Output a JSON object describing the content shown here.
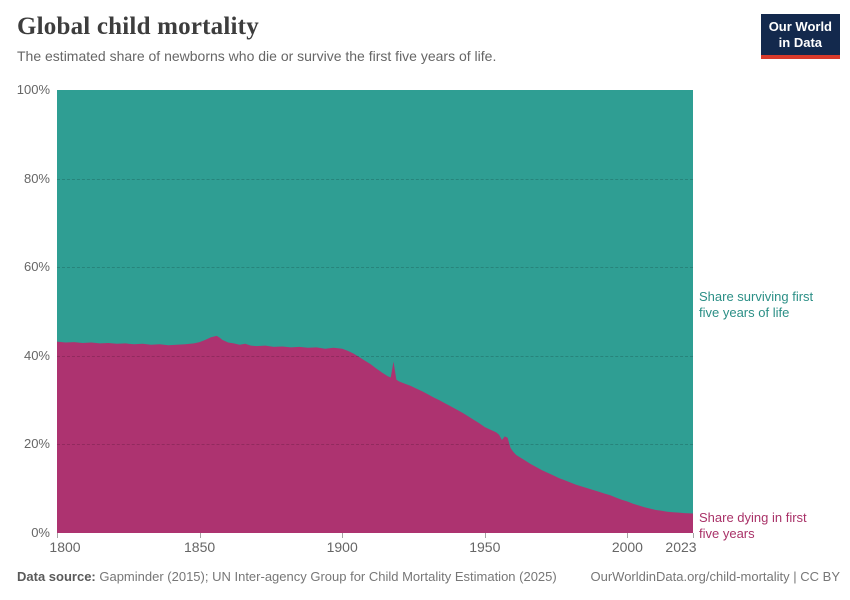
{
  "header": {
    "title": "Global child mortality",
    "subtitle": "The estimated share of newborns who die or survive the first five years of life.",
    "logo": {
      "line1": "Our World",
      "line2": "in Data",
      "bg_color": "#13294d",
      "accent_color": "#d93a2b"
    }
  },
  "chart_data": {
    "type": "area",
    "stacked": true,
    "stack_total": 100,
    "title": "Global child mortality",
    "xlabel": "",
    "ylabel": "",
    "xlim": [
      1800,
      2023
    ],
    "ylim": [
      0,
      100
    ],
    "grid": "dashed horizontal",
    "yticks": [
      0,
      20,
      40,
      60,
      80,
      100
    ],
    "ytick_suffix": "%",
    "xticks": [
      1800,
      1850,
      1900,
      1950,
      2000,
      2023
    ],
    "x": [
      1800,
      1803,
      1806,
      1809,
      1812,
      1815,
      1818,
      1821,
      1824,
      1827,
      1830,
      1833,
      1836,
      1839,
      1842,
      1845,
      1848,
      1850,
      1852,
      1854,
      1856,
      1857,
      1858,
      1860,
      1862,
      1864,
      1866,
      1868,
      1870,
      1873,
      1876,
      1879,
      1882,
      1885,
      1888,
      1891,
      1894,
      1897,
      1900,
      1902,
      1904,
      1906,
      1908,
      1910,
      1912,
      1914,
      1916,
      1917,
      1918,
      1919,
      1920,
      1922,
      1924,
      1926,
      1928,
      1930,
      1932,
      1934,
      1936,
      1938,
      1940,
      1942,
      1944,
      1946,
      1948,
      1950,
      1952,
      1954,
      1955,
      1956,
      1957,
      1958,
      1959,
      1960,
      1961,
      1962,
      1964,
      1966,
      1968,
      1970,
      1972,
      1974,
      1976,
      1978,
      1980,
      1982,
      1984,
      1986,
      1988,
      1990,
      1992,
      1994,
      1996,
      1998,
      2000,
      2002,
      2004,
      2006,
      2008,
      2010,
      2012,
      2014,
      2016,
      2018,
      2020,
      2023
    ],
    "series": [
      {
        "name": "Share dying in first five years",
        "color": "#ad3370",
        "values": [
          43.2,
          43.0,
          43.1,
          42.9,
          43.0,
          42.8,
          42.9,
          42.7,
          42.8,
          42.6,
          42.7,
          42.5,
          42.6,
          42.4,
          42.5,
          42.6,
          42.8,
          43.1,
          43.6,
          44.2,
          44.5,
          44.1,
          43.6,
          43.0,
          42.8,
          42.5,
          42.7,
          42.3,
          42.2,
          42.3,
          42.0,
          42.1,
          41.9,
          42.0,
          41.8,
          41.9,
          41.6,
          41.8,
          41.6,
          41.1,
          40.5,
          39.7,
          38.9,
          38.1,
          37.1,
          36.2,
          35.4,
          35.1,
          38.7,
          34.6,
          34.2,
          33.7,
          33.2,
          32.6,
          32.0,
          31.3,
          30.6,
          30.0,
          29.3,
          28.6,
          27.9,
          27.2,
          26.4,
          25.6,
          24.8,
          23.9,
          23.3,
          22.7,
          22.2,
          21.0,
          21.8,
          21.5,
          19.2,
          18.3,
          17.6,
          17.2,
          16.4,
          15.6,
          14.9,
          14.2,
          13.6,
          13.0,
          12.4,
          11.9,
          11.4,
          10.9,
          10.5,
          10.1,
          9.7,
          9.3,
          8.9,
          8.5,
          8.0,
          7.5,
          7.1,
          6.6,
          6.2,
          5.8,
          5.5,
          5.2,
          5.0,
          4.8,
          4.7,
          4.6,
          4.5,
          4.4
        ]
      },
      {
        "name": "Share surviving first five years of life",
        "color": "#2f9e93",
        "values": [
          56.8,
          57.0,
          56.9,
          57.1,
          57.0,
          57.2,
          57.1,
          57.3,
          57.2,
          57.4,
          57.3,
          57.5,
          57.4,
          57.6,
          57.5,
          57.4,
          57.2,
          56.9,
          56.4,
          55.8,
          55.5,
          55.9,
          56.4,
          57.0,
          57.2,
          57.5,
          57.3,
          57.7,
          57.8,
          57.7,
          58.0,
          57.9,
          58.1,
          58.0,
          58.2,
          58.1,
          58.4,
          58.2,
          58.4,
          58.9,
          59.5,
          60.3,
          61.1,
          61.9,
          62.9,
          63.8,
          64.6,
          64.9,
          61.3,
          65.4,
          65.8,
          66.3,
          66.8,
          67.4,
          68.0,
          68.7,
          69.4,
          70.0,
          70.7,
          71.4,
          72.1,
          72.8,
          73.6,
          74.4,
          75.2,
          76.1,
          76.7,
          77.3,
          77.8,
          79.0,
          78.2,
          78.5,
          80.8,
          81.7,
          82.4,
          82.8,
          83.6,
          84.4,
          85.1,
          85.8,
          86.4,
          87.0,
          87.6,
          88.1,
          88.6,
          89.1,
          89.5,
          89.9,
          90.3,
          90.7,
          91.1,
          91.5,
          92.0,
          92.5,
          92.9,
          93.4,
          93.8,
          94.2,
          94.5,
          94.8,
          95.0,
          95.2,
          95.3,
          95.4,
          95.5,
          95.6
        ]
      }
    ],
    "legend_position": "right-edge inline labels"
  },
  "annotations": {
    "surviving": {
      "text": "Share surviving first\nfive years of life",
      "color": "#2b8f86"
    },
    "dying": {
      "text": "Share dying in first\nfive years",
      "color": "#a93268"
    }
  },
  "footer": {
    "datasource_label": "Data source:",
    "datasource_text": " Gapminder (2015); UN Inter-agency Group for Child Mortality Estimation (2025)",
    "link": "OurWorldinData.org/child-mortality | CC BY"
  }
}
